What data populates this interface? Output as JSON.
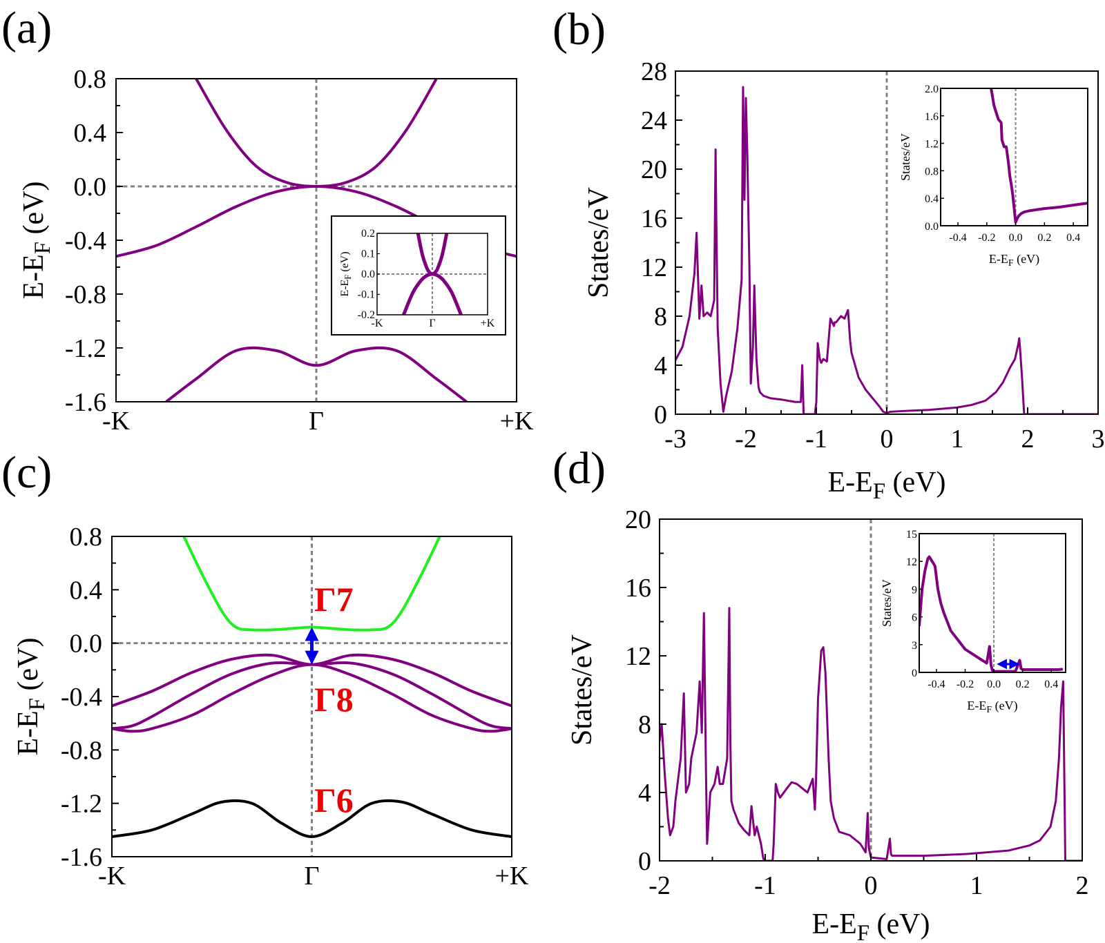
{
  "colors": {
    "band": "#800080",
    "conduction_soc": "#22ee22",
    "gamma6": "#000000",
    "irrep_text": "#ee0000",
    "arrow": "#0000ee",
    "reference_line": "#808080"
  },
  "chart_data": [
    {
      "panel": "(a)",
      "type": "line",
      "title": "",
      "xlabel": "",
      "ylabel": "E-E_F (eV)",
      "xticks": [
        "-K",
        "Γ",
        "+K"
      ],
      "xlim": [
        -1,
        1
      ],
      "ylim": [
        -1.6,
        0.8
      ],
      "yticks": [
        "0.8",
        "0.4",
        "0.0",
        "-0.4",
        "-0.8",
        "-1.2",
        "-1.6"
      ],
      "reference_lines": {
        "vertical_x": 0,
        "horizontal_y": 0
      },
      "series": [
        {
          "x": [
            -0.6,
            -0.45,
            -0.3,
            -0.15,
            0,
            0.15,
            0.3,
            0.45,
            0.6
          ],
          "y": [
            0.8,
            0.42,
            0.15,
            0.03,
            0.0,
            0.03,
            0.15,
            0.42,
            0.8
          ]
        },
        {
          "x": [
            -1,
            -0.8,
            -0.6,
            -0.4,
            -0.2,
            0,
            0.2,
            0.4,
            0.6,
            0.8,
            1
          ],
          "y": [
            -0.52,
            -0.44,
            -0.3,
            -0.15,
            -0.04,
            0.0,
            -0.04,
            -0.15,
            -0.3,
            -0.44,
            -0.52
          ]
        },
        {
          "x": [
            -0.75,
            -0.6,
            -0.4,
            -0.2,
            0,
            0.2,
            0.4,
            0.6,
            0.75
          ],
          "y": [
            -1.6,
            -1.43,
            -1.22,
            -1.22,
            -1.33,
            -1.22,
            -1.22,
            -1.43,
            -1.6
          ]
        }
      ],
      "inset": {
        "ylabel": "E-E_F (eV)",
        "xticks": [
          "-K",
          "Γ",
          "+K"
        ],
        "ylim": [
          -0.2,
          0.2
        ],
        "yticks": [
          "0.2",
          "0.1",
          "0.0",
          "-0.1",
          "-0.2"
        ],
        "series": [
          {
            "x": [
              -0.26,
              -0.18,
              -0.1,
              -0.05,
              0,
              0.05,
              0.1,
              0.18,
              0.26
            ],
            "y": [
              0.2,
              0.095,
              0.03,
              0.008,
              0.0,
              0.008,
              0.03,
              0.095,
              0.2
            ]
          },
          {
            "x": [
              -0.52,
              -0.35,
              -0.2,
              -0.1,
              0,
              0.1,
              0.2,
              0.35,
              0.52
            ],
            "y": [
              -0.2,
              -0.09,
              -0.03,
              -0.008,
              0.0,
              -0.008,
              -0.03,
              -0.09,
              -0.2
            ]
          }
        ]
      }
    },
    {
      "panel": "(b)",
      "type": "line",
      "title": "",
      "xlabel": "E-E_F (eV)",
      "ylabel": "States/eV",
      "xlim": [
        -3,
        3
      ],
      "ylim": [
        0,
        28
      ],
      "xticks": [
        "-3",
        "-2",
        "-1",
        "0",
        "1",
        "2",
        "3"
      ],
      "yticks": [
        "0",
        "4",
        "8",
        "12",
        "16",
        "20",
        "24",
        "28"
      ],
      "reference_lines": {
        "vertical_x": 0
      },
      "series": [
        {
          "x": [
            -3.0,
            -2.9,
            -2.8,
            -2.73,
            -2.7,
            -2.66,
            -2.63,
            -2.6,
            -2.55,
            -2.5,
            -2.45,
            -2.43,
            -2.42,
            -2.4,
            -2.36,
            -2.32,
            -2.28,
            -2.26,
            -2.2,
            -2.12,
            -2.06,
            -2.04,
            -2.02,
            -2.0,
            -1.98,
            -1.95,
            -1.93,
            -1.9,
            -1.88,
            -1.85,
            -1.82,
            -1.8,
            -1.75,
            -1.65,
            -1.5,
            -1.3,
            -1.22,
            -1.2,
            -1.18,
            -1.02,
            -1.0,
            -0.98,
            -0.95,
            -0.93,
            -0.9,
            -0.85,
            -0.8,
            -0.75,
            -0.74,
            -0.72,
            -0.65,
            -0.6,
            -0.55,
            -0.52,
            -0.5,
            -0.4,
            -0.3,
            -0.2,
            -0.1,
            -0.05,
            0.0,
            0.05,
            0.2,
            0.4,
            0.6,
            0.8,
            1.0,
            1.2,
            1.4,
            1.55,
            1.65,
            1.75,
            1.82,
            1.87,
            1.88,
            1.89,
            1.92,
            1.95,
            2.0,
            2.5,
            3.0
          ],
          "y": [
            4.4,
            5.5,
            8.0,
            11.5,
            14.8,
            7.8,
            10.5,
            8.0,
            8.3,
            8.0,
            9.3,
            21.6,
            16.0,
            7.0,
            2.5,
            0.2,
            1.5,
            2.0,
            3.5,
            7.0,
            11.0,
            26.7,
            17.5,
            25.8,
            21.3,
            12.0,
            2.5,
            5.5,
            10.5,
            4.5,
            2.2,
            1.8,
            1.5,
            1.3,
            1.2,
            1.0,
            1.0,
            4.0,
            0.0,
            0.0,
            1.0,
            5.8,
            4.5,
            4.2,
            4.5,
            4.3,
            7.8,
            7.2,
            7.5,
            7.5,
            8.0,
            7.8,
            8.5,
            6.0,
            5.0,
            3.0,
            2.0,
            1.3,
            0.6,
            0.2,
            0.1,
            0.2,
            0.25,
            0.3,
            0.35,
            0.45,
            0.55,
            0.75,
            1.1,
            1.8,
            2.6,
            3.8,
            4.5,
            5.8,
            6.2,
            5.5,
            3.0,
            0.0,
            0.0,
            0.0,
            0.0
          ]
        }
      ],
      "inset": {
        "ylabel": "States/eV",
        "xlabel": "E-E_F (eV)",
        "xlim": [
          -0.52,
          0.5
        ],
        "ylim": [
          0,
          2.0
        ],
        "xticks": [
          "-0.4",
          "-0.2",
          "0.0",
          "0.2",
          "0.4"
        ],
        "yticks": [
          "0.0",
          "0.4",
          "0.8",
          "1.2",
          "1.6",
          "2.0"
        ],
        "series": [
          {
            "x": [
              -0.17,
              -0.15,
              -0.12,
              -0.1,
              -0.095,
              -0.08,
              -0.065,
              -0.05,
              -0.04,
              -0.03,
              -0.02,
              -0.01,
              0.0,
              0.01,
              0.02,
              0.04,
              0.06,
              0.1,
              0.2,
              0.3,
              0.4,
              0.5
            ],
            "y": [
              2.0,
              1.75,
              1.55,
              1.5,
              1.25,
              1.15,
              1.15,
              0.92,
              0.72,
              0.6,
              0.45,
              0.25,
              0.05,
              0.1,
              0.14,
              0.18,
              0.2,
              0.22,
              0.25,
              0.27,
              0.3,
              0.33
            ]
          }
        ]
      }
    },
    {
      "panel": "(c)",
      "type": "line",
      "title": "",
      "xlabel": "",
      "ylabel": "E-E_F (eV)",
      "xticks": [
        "-K",
        "Γ",
        "+K"
      ],
      "xlim": [
        -1,
        1
      ],
      "ylim": [
        -1.6,
        0.8
      ],
      "yticks": [
        "0.8",
        "0.4",
        "0.0",
        "-0.4",
        "-0.8",
        "-1.2",
        "-1.6"
      ],
      "reference_lines": {
        "vertical_x": 0,
        "horizontal_y": 0
      },
      "annotations": {
        "gamma7": "Γ7",
        "gamma8": "Γ8",
        "gamma6": "Γ6",
        "gap_arrow_y": [
          0.12,
          -0.16
        ]
      },
      "series": [
        {
          "name": "Γ7",
          "x": [
            -0.64,
            -0.55,
            -0.45,
            -0.38,
            -0.3,
            -0.2,
            -0.1,
            0,
            0.1,
            0.2,
            0.3,
            0.38,
            0.45,
            0.55,
            0.64
          ],
          "y": [
            0.8,
            0.52,
            0.24,
            0.12,
            0.1,
            0.1,
            0.11,
            0.12,
            0.11,
            0.1,
            0.1,
            0.12,
            0.24,
            0.52,
            0.8
          ]
        },
        {
          "x": [
            -1,
            -0.8,
            -0.6,
            -0.4,
            -0.2,
            0,
            0.2,
            0.4,
            0.6,
            0.8,
            1
          ],
          "y": [
            -0.47,
            -0.36,
            -0.22,
            -0.12,
            -0.09,
            -0.16,
            -0.09,
            -0.12,
            -0.22,
            -0.36,
            -0.47
          ]
        },
        {
          "x": [
            -1,
            -0.9,
            -0.8,
            -0.6,
            -0.4,
            -0.2,
            0,
            0.2,
            0.4,
            0.6,
            0.8,
            0.9,
            1
          ],
          "y": [
            -0.64,
            -0.62,
            -0.55,
            -0.38,
            -0.23,
            -0.15,
            -0.16,
            -0.15,
            -0.23,
            -0.38,
            -0.55,
            -0.62,
            -0.64
          ]
        },
        {
          "x": [
            -1,
            -0.9,
            -0.8,
            -0.6,
            -0.4,
            -0.2,
            0,
            0.2,
            0.4,
            0.6,
            0.8,
            0.9,
            1
          ],
          "y": [
            -0.64,
            -0.66,
            -0.64,
            -0.54,
            -0.38,
            -0.24,
            -0.16,
            -0.24,
            -0.38,
            -0.54,
            -0.64,
            -0.66,
            -0.64
          ]
        },
        {
          "name": "Γ6",
          "x": [
            -1,
            -0.8,
            -0.6,
            -0.45,
            -0.3,
            -0.15,
            0,
            0.15,
            0.3,
            0.45,
            0.6,
            0.8,
            1
          ],
          "y": [
            -1.45,
            -1.4,
            -1.28,
            -1.19,
            -1.2,
            -1.35,
            -1.45,
            -1.35,
            -1.2,
            -1.19,
            -1.28,
            -1.4,
            -1.45
          ]
        }
      ]
    },
    {
      "panel": "(d)",
      "type": "line",
      "title": "",
      "xlabel": "E-E_F (eV)",
      "ylabel": "States/eV",
      "xlim": [
        -2,
        2
      ],
      "ylim": [
        0,
        20
      ],
      "xticks": [
        "-2",
        "-1",
        "0",
        "1",
        "2"
      ],
      "yticks": [
        "0",
        "4",
        "8",
        "12",
        "16",
        "20"
      ],
      "reference_lines": {
        "vertical_x": 0
      },
      "series": [
        {
          "x": [
            -2.0,
            -1.98,
            -1.95,
            -1.92,
            -1.9,
            -1.87,
            -1.85,
            -1.82,
            -1.8,
            -1.77,
            -1.75,
            -1.72,
            -1.7,
            -1.65,
            -1.62,
            -1.6,
            -1.58,
            -1.56,
            -1.55,
            -1.54,
            -1.52,
            -1.48,
            -1.45,
            -1.43,
            -1.4,
            -1.36,
            -1.34,
            -1.33,
            -1.32,
            -1.3,
            -1.25,
            -1.2,
            -1.15,
            -1.13,
            -1.1,
            -1.08,
            -1.06,
            -1.04,
            -1.02,
            -1.01,
            -0.93,
            -0.92,
            -0.9,
            -0.88,
            -0.86,
            -0.8,
            -0.75,
            -0.7,
            -0.6,
            -0.55,
            -0.53,
            -0.52,
            -0.5,
            -0.47,
            -0.45,
            -0.43,
            -0.4,
            -0.38,
            -0.35,
            -0.3,
            -0.2,
            -0.1,
            -0.05,
            -0.03,
            -0.02,
            0.0,
            0.15,
            0.18,
            0.19,
            0.2,
            0.3,
            0.5,
            0.7,
            0.9,
            1.1,
            1.3,
            1.5,
            1.6,
            1.7,
            1.75,
            1.78,
            1.8,
            1.82,
            1.84,
            2.0
          ],
          "y": [
            7.0,
            8.0,
            5.0,
            2.5,
            1.5,
            2.0,
            3.5,
            5.0,
            6.0,
            9.8,
            4.0,
            4.5,
            6.0,
            7.5,
            10.5,
            7.5,
            14.5,
            5.0,
            1.0,
            2.0,
            4.0,
            4.5,
            5.5,
            4.5,
            4.5,
            6.0,
            14.8,
            7.0,
            3.5,
            3.0,
            2.2,
            1.8,
            1.5,
            3.2,
            1.5,
            2.0,
            1.5,
            1.0,
            0.2,
            0.0,
            0.0,
            1.0,
            4.5,
            4.0,
            3.7,
            4.2,
            4.6,
            4.5,
            4.0,
            4.8,
            3.0,
            4.5,
            9.5,
            12.3,
            12.5,
            11.0,
            6.0,
            3.5,
            2.5,
            1.7,
            1.5,
            1.0,
            0.5,
            2.8,
            0.8,
            0.2,
            0.1,
            1.3,
            0.4,
            0.3,
            0.3,
            0.3,
            0.35,
            0.4,
            0.5,
            0.6,
            0.9,
            1.2,
            2.0,
            3.5,
            6.0,
            9.0,
            10.5,
            0.0,
            0.0
          ]
        }
      ],
      "inset": {
        "ylabel": "States/eV",
        "xlabel": "E-E_F (eV)",
        "xlim": [
          -0.52,
          0.5
        ],
        "ylim": [
          0,
          15
        ],
        "xticks": [
          "-0.4",
          "-0.2",
          "0.0",
          "0.2",
          "0.4"
        ],
        "yticks": [
          "0",
          "3",
          "6",
          "9",
          "12",
          "15"
        ],
        "arrow_x": [
          0.02,
          0.18
        ],
        "series": [
          {
            "x": [
              -0.52,
              -0.5,
              -0.48,
              -0.46,
              -0.45,
              -0.43,
              -0.41,
              -0.39,
              -0.37,
              -0.35,
              -0.3,
              -0.25,
              -0.2,
              -0.15,
              -0.1,
              -0.05,
              -0.03,
              -0.02,
              -0.01,
              0.0,
              0.15,
              0.18,
              0.19,
              0.2,
              0.3,
              0.4,
              0.45,
              0.48
            ],
            "y": [
              5.0,
              9.0,
              11.0,
              12.3,
              12.5,
              12.0,
              11.5,
              9.0,
              7.5,
              6.5,
              4.5,
              3.5,
              2.5,
              2.0,
              1.5,
              1.0,
              2.8,
              0.8,
              0.2,
              0.1,
              0.1,
              1.3,
              0.4,
              0.3,
              0.3,
              0.3,
              0.3,
              0.35
            ]
          }
        ]
      }
    }
  ]
}
